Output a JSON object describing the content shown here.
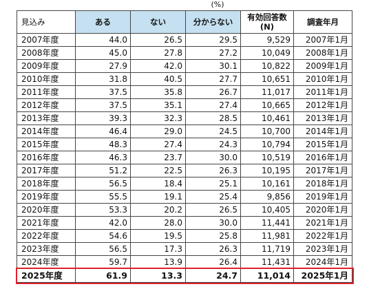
{
  "unit_label": "(%)",
  "table": {
    "headers": [
      "見込み",
      "ある",
      "ない",
      "分からない",
      "有効回答数\n(N)",
      "調査年月"
    ],
    "rows": [
      [
        "2007年度",
        "44.0",
        "26.5",
        "29.5",
        "9,529",
        "2007年1月"
      ],
      [
        "2008年度",
        "45.0",
        "27.8",
        "27.2",
        "10,049",
        "2008年1月"
      ],
      [
        "2009年度",
        "27.9",
        "42.0",
        "30.1",
        "10,822",
        "2009年1月"
      ],
      [
        "2010年度",
        "31.8",
        "40.5",
        "27.7",
        "10,651",
        "2010年1月"
      ],
      [
        "2011年度",
        "37.5",
        "35.8",
        "26.7",
        "11,017",
        "2011年1月"
      ],
      [
        "2012年度",
        "37.5",
        "35.1",
        "27.4",
        "10,665",
        "2012年1月"
      ],
      [
        "2013年度",
        "39.3",
        "32.3",
        "28.5",
        "10,461",
        "2013年1月"
      ],
      [
        "2014年度",
        "46.4",
        "29.0",
        "24.5",
        "10,700",
        "2014年1月"
      ],
      [
        "2015年度",
        "48.3",
        "27.4",
        "24.3",
        "10,794",
        "2015年1月"
      ],
      [
        "2016年度",
        "46.3",
        "23.7",
        "30.0",
        "10,519",
        "2016年1月"
      ],
      [
        "2017年度",
        "51.2",
        "22.5",
        "26.3",
        "10,195",
        "2017年1月"
      ],
      [
        "2018年度",
        "56.5",
        "18.4",
        "25.1",
        "10,161",
        "2018年1月"
      ],
      [
        "2019年度",
        "55.5",
        "19.1",
        "25.4",
        "9,856",
        "2019年1月"
      ],
      [
        "2020年度",
        "53.3",
        "20.2",
        "26.5",
        "10,405",
        "2020年1月"
      ],
      [
        "2021年度",
        "42.0",
        "28.0",
        "30.0",
        "11,441",
        "2021年1月"
      ],
      [
        "2022年度",
        "54.6",
        "19.5",
        "25.8",
        "11,981",
        "2022年1月"
      ],
      [
        "2023年度",
        "56.5",
        "17.3",
        "26.3",
        "11,719",
        "2023年1月"
      ],
      [
        "2024年度",
        "59.7",
        "13.9",
        "26.4",
        "11,431",
        "2024年1月"
      ],
      [
        "2025年度",
        "61.9",
        "13.3",
        "24.7",
        "11,014",
        "2025年1月"
      ]
    ],
    "highlight_row": 18
  },
  "colors": {
    "header_fill": "#c5e0f0",
    "highlight_border": "#e0202a"
  }
}
